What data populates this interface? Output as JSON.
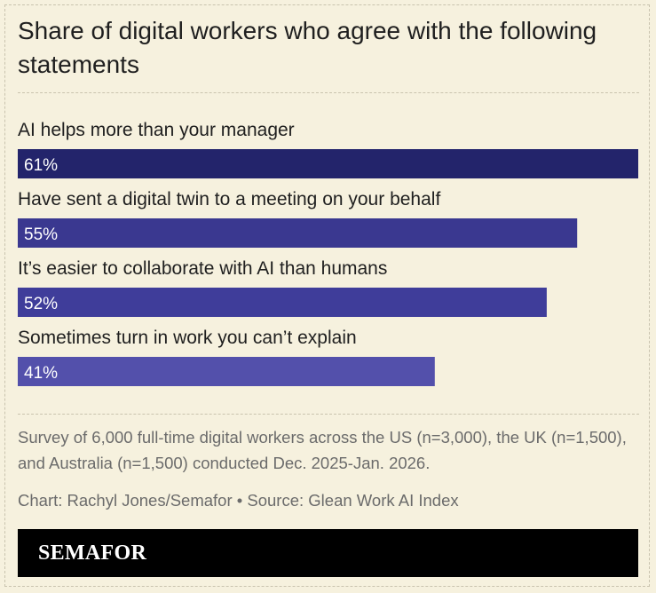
{
  "title": "Share of digital workers who agree with the following statements",
  "footnote": "Survey of 6,000 full-time digital workers across the US (n=3,000), the UK (n=1,500), and Australia (n=1,500) conducted Dec. 2025-Jan. 2026.",
  "credit": "Chart: Rachyl Jones/Semafor • Source: Glean Work AI Index",
  "logo": "SEMAFOR",
  "colors": {
    "background": "#f6f1de",
    "bar_shades": [
      "#23246b",
      "#3a3890",
      "#3f3d9a",
      "#5350ab"
    ],
    "logo_bar": "#000000"
  },
  "chart_data": {
    "type": "bar",
    "orientation": "horizontal",
    "categories": [
      "AI helps more than your manager",
      "Have sent a digital twin to a meeting on your behalf",
      "It’s easier to collaborate with AI than humans",
      "Sometimes turn in work you can’t explain"
    ],
    "values": [
      61,
      55,
      52,
      41
    ],
    "value_labels": [
      "61%",
      "55%",
      "52%",
      "41%"
    ],
    "unit": "%",
    "xlim": [
      0,
      61
    ],
    "grid": false,
    "legend": "none"
  }
}
